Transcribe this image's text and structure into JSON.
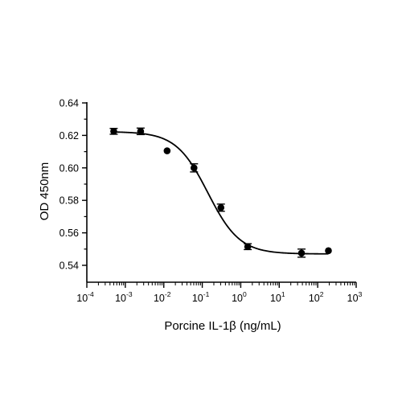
{
  "chart_data": {
    "type": "scatter",
    "title": "",
    "xlabel": "Porcine IL-1β (ng/mL)",
    "ylabel": "OD 450nm",
    "x_scale": "log",
    "xlim": [
      0.0001,
      1000
    ],
    "ylim": [
      0.535,
      0.64
    ],
    "y_ticks": [
      "0.54",
      "0.56",
      "0.58",
      "0.60",
      "0.62",
      "0.64"
    ],
    "x_ticks": [
      {
        "base": "10",
        "exp": "-4"
      },
      {
        "base": "10",
        "exp": "-3"
      },
      {
        "base": "10",
        "exp": "-2"
      },
      {
        "base": "10",
        "exp": "-1"
      },
      {
        "base": "10",
        "exp": "0"
      },
      {
        "base": "10",
        "exp": "1"
      },
      {
        "base": "10",
        "exp": "2"
      },
      {
        "base": "10",
        "exp": "3"
      }
    ],
    "grid": false,
    "legend": "none",
    "series": [
      {
        "x": [
          0.0005,
          0.0025,
          0.0122,
          0.061,
          0.305,
          1.52,
          38,
          190
        ],
        "y": [
          0.6225,
          0.6225,
          0.6105,
          0.6,
          0.5755,
          0.5515,
          0.5475,
          0.549
        ],
        "error": [
          0.0018,
          0.002,
          0.0,
          0.0025,
          0.0022,
          0.0018,
          0.0025,
          0.0
        ],
        "fit": {
          "model": "4PL",
          "top": 0.6223,
          "bottom": 0.547,
          "ec50": 0.14,
          "hill": 1.05
        },
        "color": "#000000"
      }
    ]
  }
}
